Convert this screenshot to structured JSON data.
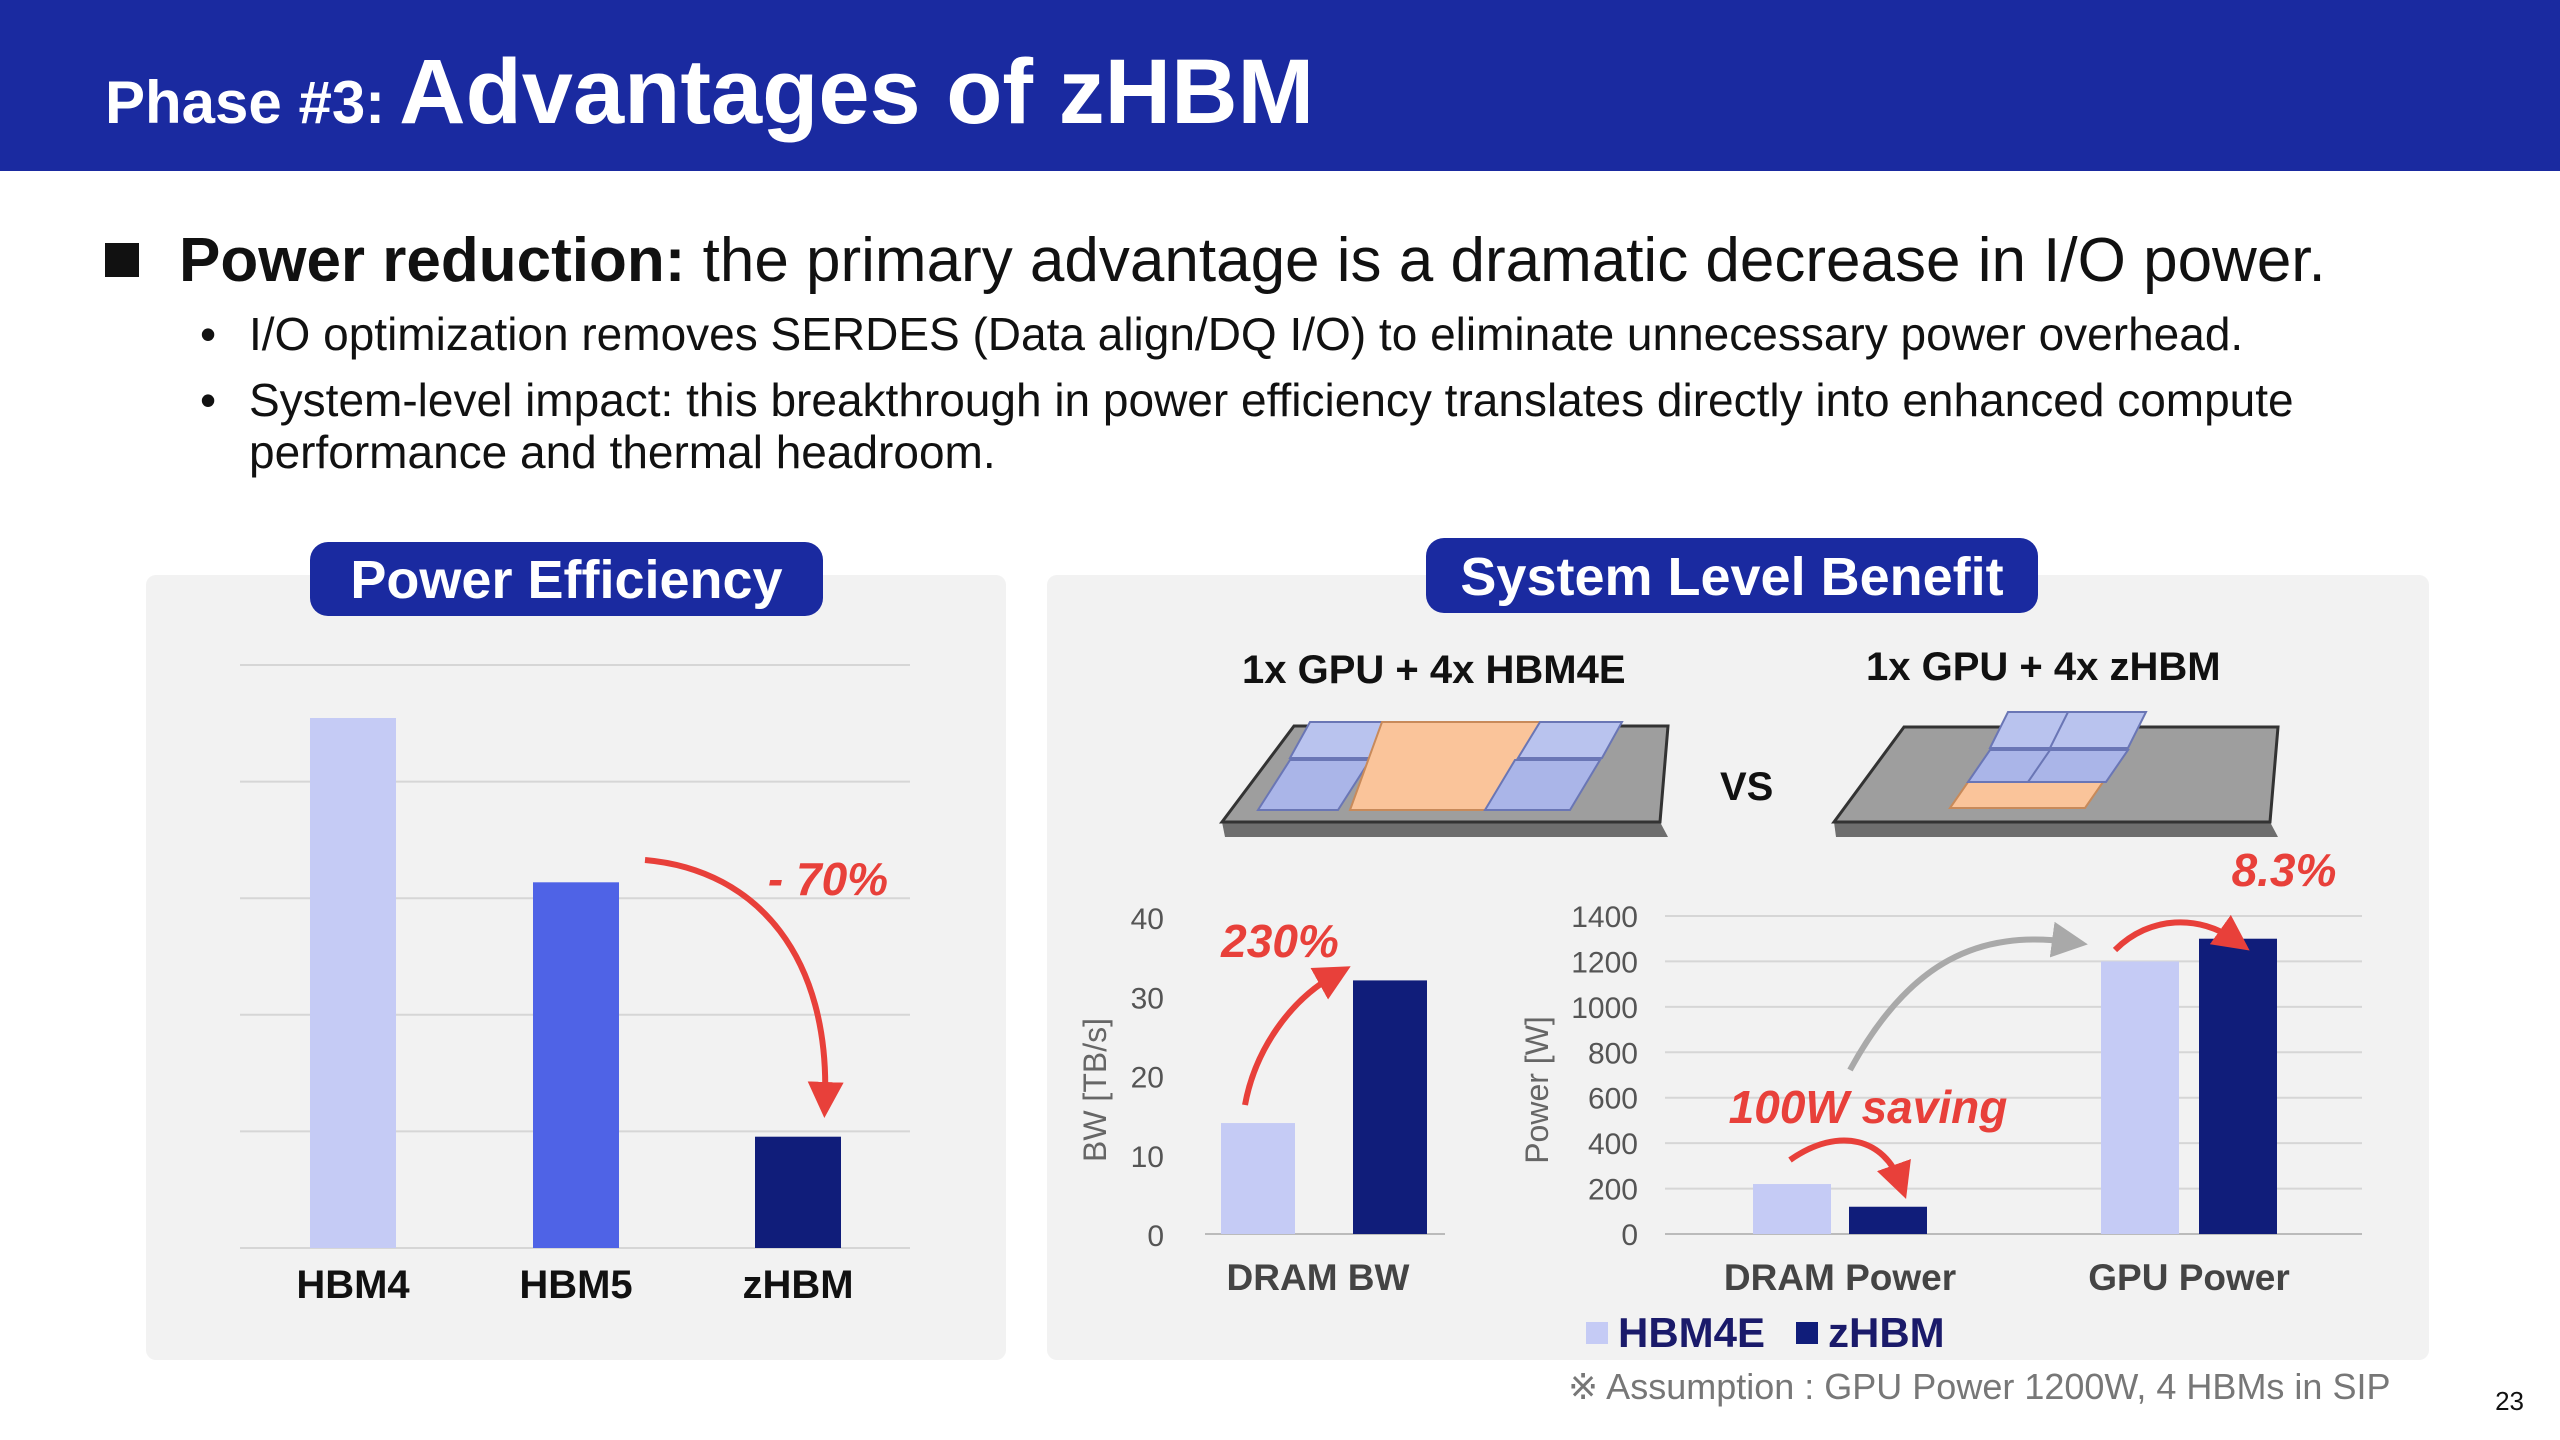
{
  "header": {
    "prefix": "Phase #3:",
    "title": "Advantages of zHBM"
  },
  "main_bullet": {
    "bold": "Power reduction:",
    "rest": " the primary advantage is a dramatic decrease in I/O power."
  },
  "sub_bullets": [
    "I/O optimization removes SERDES (Data align/DQ I/O) to eliminate unnecessary power overhead.",
    "System-level impact: this breakthrough in power efficiency translates directly into enhanced compute performance and thermal headroom."
  ],
  "power_efficiency": {
    "title": "Power Efficiency",
    "annotation": "- 70%"
  },
  "system_level": {
    "title": "System Level Benefit",
    "config_left": "1x GPU + 4x HBM4E",
    "config_right": "1x GPU + 4x zHBM",
    "vs": "VS",
    "bw_annotation": "230%",
    "saving_annotation": "100W saving",
    "gpu_annotation": "8.3%"
  },
  "footnote": "※ Assumption : GPU Power 1200W, 4 HBMs in SIP",
  "page_number": "23",
  "colors": {
    "header": "#1a2aa0",
    "light": "#c5cbf5",
    "mid": "#4f63e6",
    "dark": "#101d7a",
    "accent": "#e8403a"
  },
  "chart_data": [
    {
      "type": "bar",
      "title": "Power Efficiency",
      "categories": [
        "HBM4",
        "HBM5",
        "zHBM"
      ],
      "values": [
        100,
        69,
        21
      ],
      "ylim": [
        0,
        110
      ],
      "grid": true,
      "annotations": [
        "- 70%"
      ]
    },
    {
      "type": "bar",
      "categories": [
        "DRAM BW"
      ],
      "ylabel": "BW [TB/s]",
      "ylim": [
        0,
        40
      ],
      "yticks": [
        0,
        10,
        20,
        30,
        40
      ],
      "series": [
        {
          "name": "HBM4E",
          "values": [
            14
          ]
        },
        {
          "name": "zHBM",
          "values": [
            32
          ]
        }
      ],
      "annotations": [
        "230%"
      ]
    },
    {
      "type": "bar",
      "categories": [
        "DRAM Power",
        "GPU Power"
      ],
      "ylabel": "Power [W]",
      "ylim": [
        0,
        1400
      ],
      "yticks": [
        0,
        200,
        400,
        600,
        800,
        1000,
        1200,
        1400
      ],
      "series": [
        {
          "name": "HBM4E",
          "values": [
            220,
            1200
          ]
        },
        {
          "name": "zHBM",
          "values": [
            120,
            1300
          ]
        }
      ],
      "legend": "bottom",
      "annotations": [
        "100W saving",
        "8.3%"
      ]
    }
  ]
}
